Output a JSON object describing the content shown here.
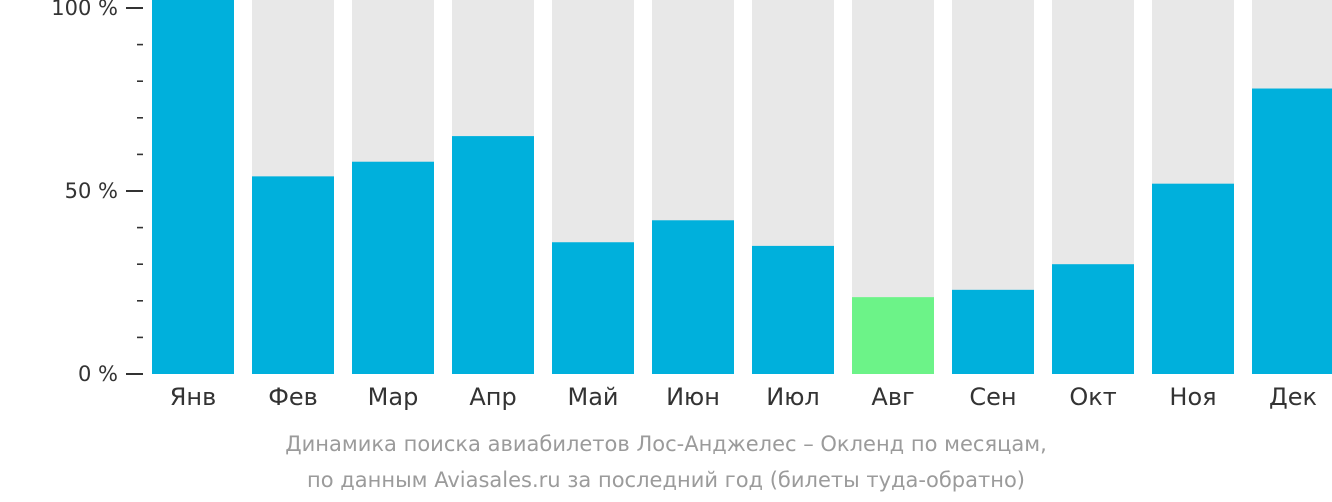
{
  "chart_data": {
    "type": "bar",
    "categories": [
      "Янв",
      "Фев",
      "Мар",
      "Апр",
      "Май",
      "Июн",
      "Июл",
      "Авг",
      "Сен",
      "Окт",
      "Ноя",
      "Дек"
    ],
    "values": [
      100,
      54,
      58,
      65,
      36,
      42,
      35,
      21,
      23,
      30,
      52,
      78
    ],
    "highlight_index": 7,
    "ylim": [
      0,
      100
    ],
    "yticks": [
      {
        "value": 0,
        "label": "0 %"
      },
      {
        "value": 50,
        "label": "50 %"
      },
      {
        "value": 100,
        "label": "100 %"
      }
    ],
    "minor_tick_step": 10,
    "colors": {
      "bar": "#00b0dc",
      "highlight": "#6cf388",
      "background_bar": "#e8e8e8",
      "axis": "#333333"
    },
    "caption": [
      "Динамика поиска авиабилетов Лос-Анджелес – Окленд по месяцам,",
      "по данным Aviasales.ru за последний год (билеты туда-обратно)"
    ]
  }
}
